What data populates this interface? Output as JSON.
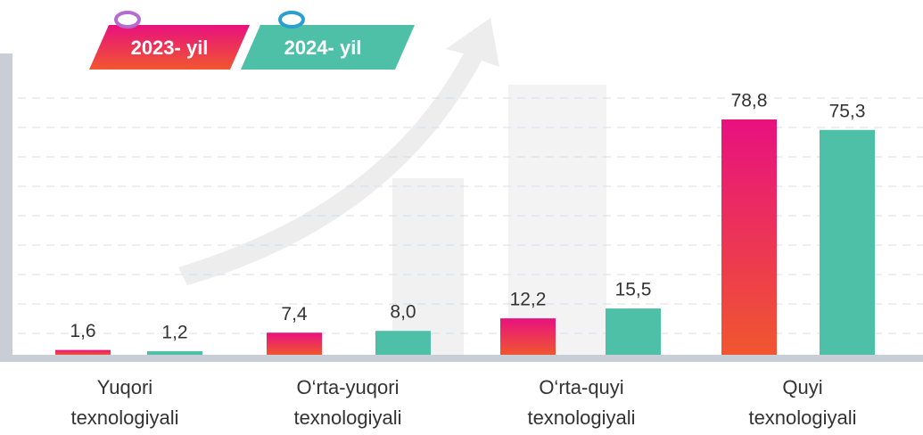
{
  "chart_data": {
    "type": "bar",
    "categories": [
      "Yuqori texnologiyali",
      "O‘rta-yuqori texnologiyali",
      "O‘rta-quyi texnologiyali",
      "Quyi texnologiyali"
    ],
    "series": [
      {
        "name": "2023- yil",
        "color": "#e8117f",
        "values": [
          1.6,
          7.4,
          12.2,
          78.8
        ],
        "value_labels": [
          "1,6",
          "7,4",
          "12,2",
          "78,8"
        ]
      },
      {
        "name": "2024- yil",
        "color": "#4fc0a8",
        "values": [
          1.2,
          8.0,
          15.5,
          75.3
        ],
        "value_labels": [
          "1,2",
          "8,0",
          "15,5",
          "75,3"
        ]
      }
    ],
    "ylim": [
      0,
      80
    ]
  }
}
